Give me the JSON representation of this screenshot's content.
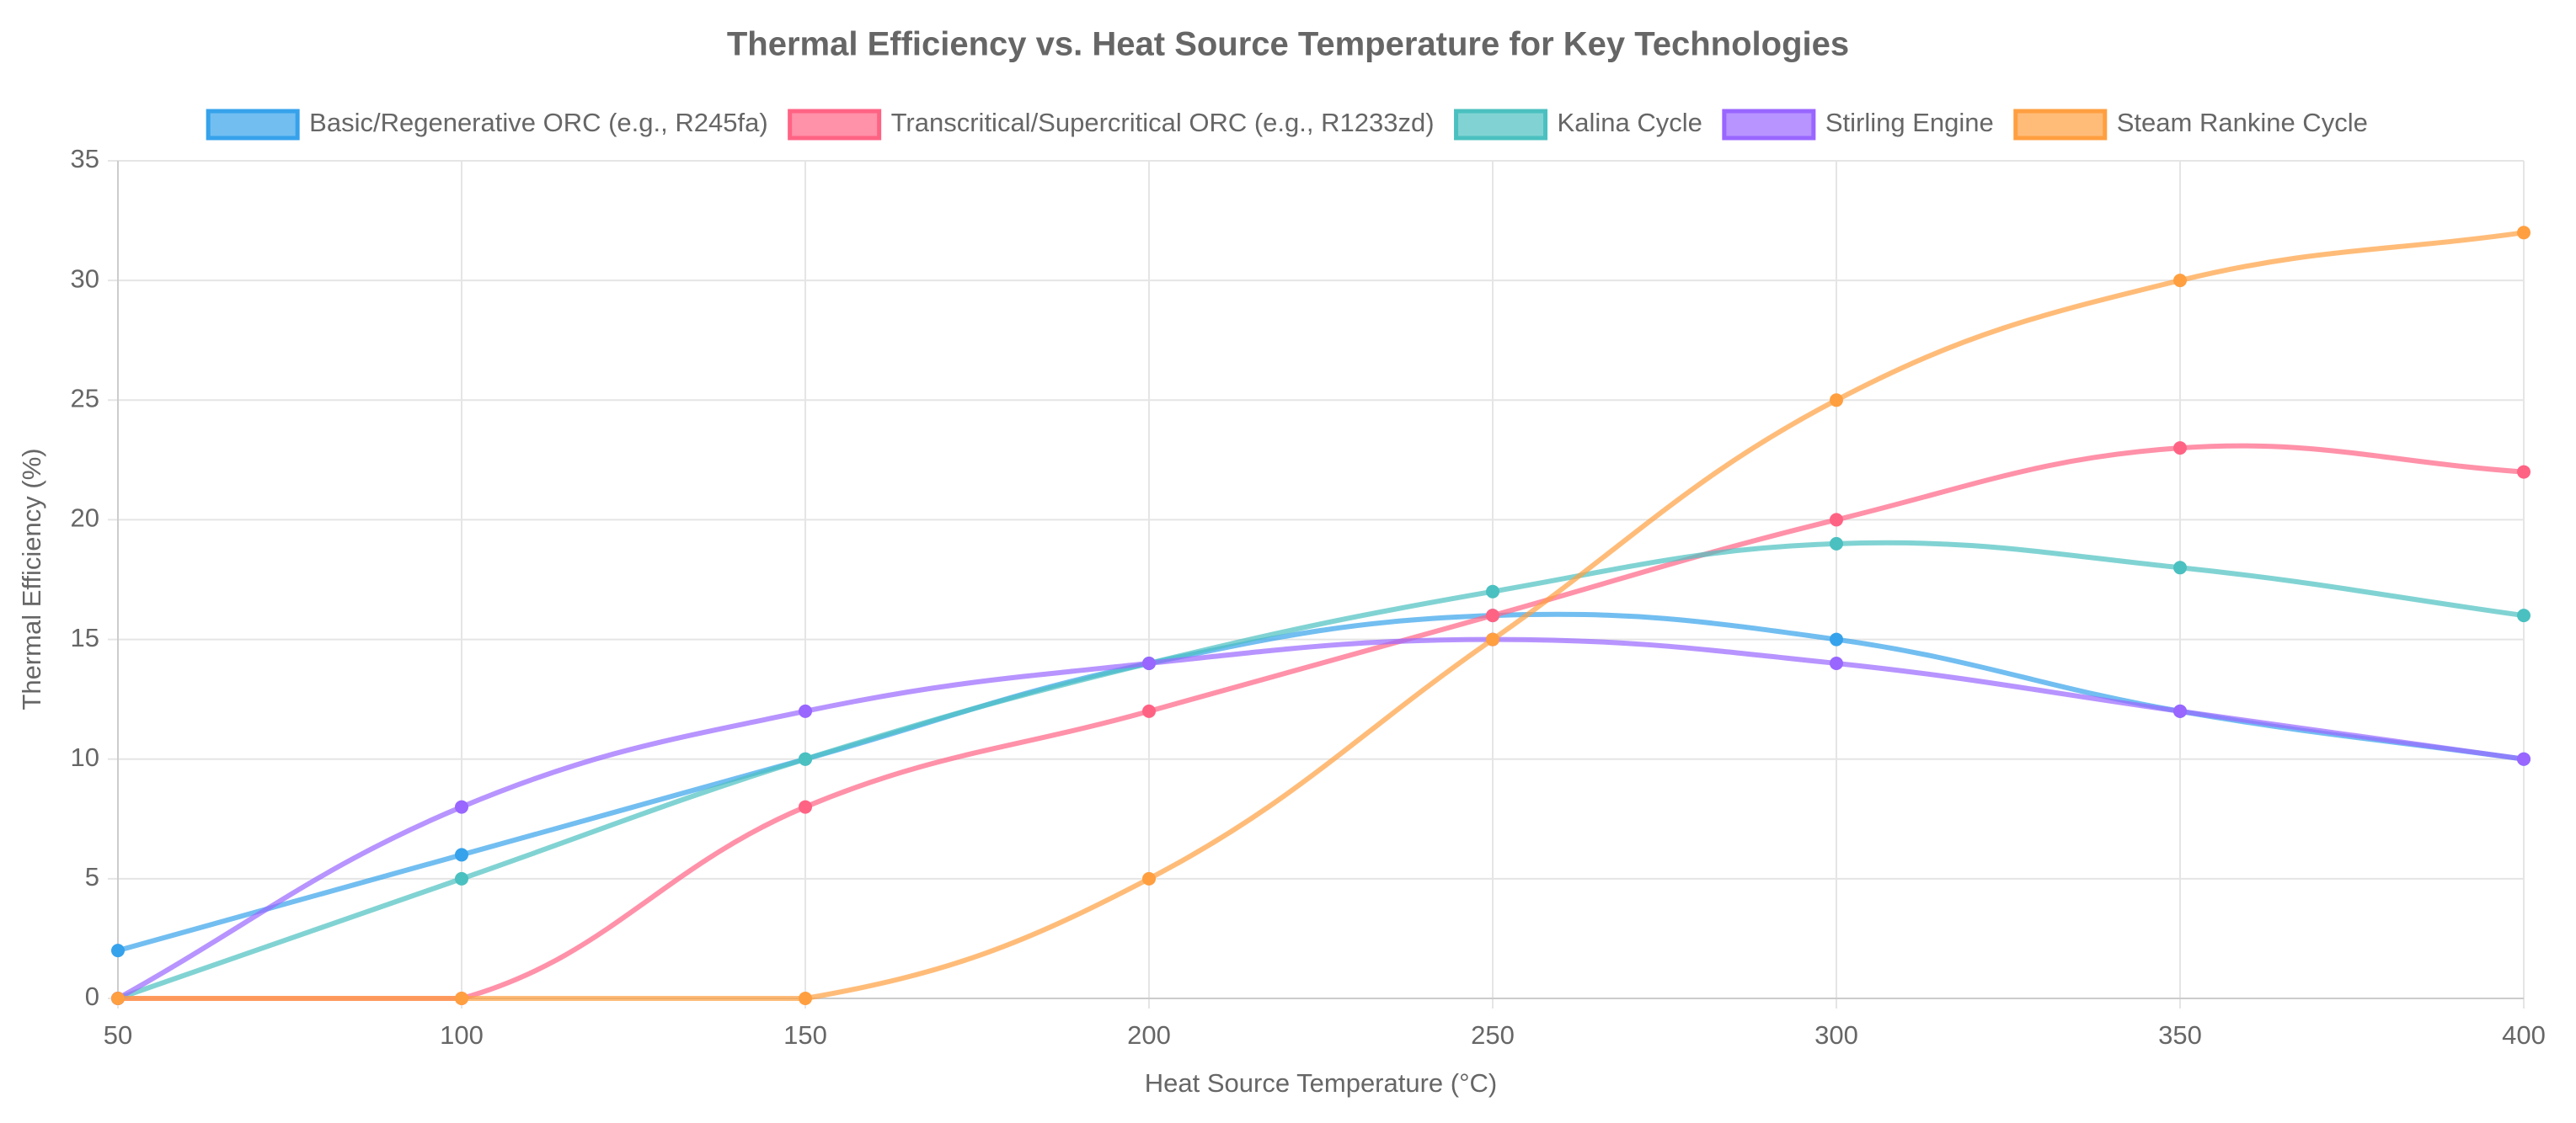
{
  "chart_data": {
    "type": "line",
    "title": "Thermal Efficiency vs. Heat Source Temperature for Key Technologies",
    "x_label": "Heat Source Temperature (°C)",
    "y_label": "Thermal Efficiency (%)",
    "x": [
      50,
      100,
      150,
      200,
      250,
      300,
      350,
      400
    ],
    "xlim": [
      50,
      400
    ],
    "xticks": [
      50,
      100,
      150,
      200,
      250,
      300,
      350,
      400
    ],
    "ylim": [
      0,
      35
    ],
    "yticks": [
      0,
      5,
      10,
      15,
      20,
      25,
      30,
      35
    ],
    "grid": true,
    "legend": "top",
    "series": [
      {
        "name": "Basic/Regenerative ORC (e.g., R245fa)",
        "color": "#36a2eb",
        "values": [
          2,
          6,
          10,
          14,
          16,
          15,
          12,
          10
        ]
      },
      {
        "name": "Transcritical/Supercritical ORC (e.g., R1233zd)",
        "color": "#ff6384",
        "values": [
          0,
          0,
          8,
          12,
          16,
          20,
          23,
          22
        ]
      },
      {
        "name": "Kalina Cycle",
        "color": "#4bc0c0",
        "values": [
          0,
          5,
          10,
          14,
          17,
          19,
          18,
          16
        ]
      },
      {
        "name": "Stirling Engine",
        "color": "#9966ff",
        "values": [
          0,
          8,
          12,
          14,
          15,
          14,
          12,
          10
        ]
      },
      {
        "name": "Steam Rankine Cycle",
        "color": "#ff9f40",
        "values": [
          0,
          0,
          0,
          5,
          15,
          25,
          30,
          32
        ]
      }
    ]
  }
}
